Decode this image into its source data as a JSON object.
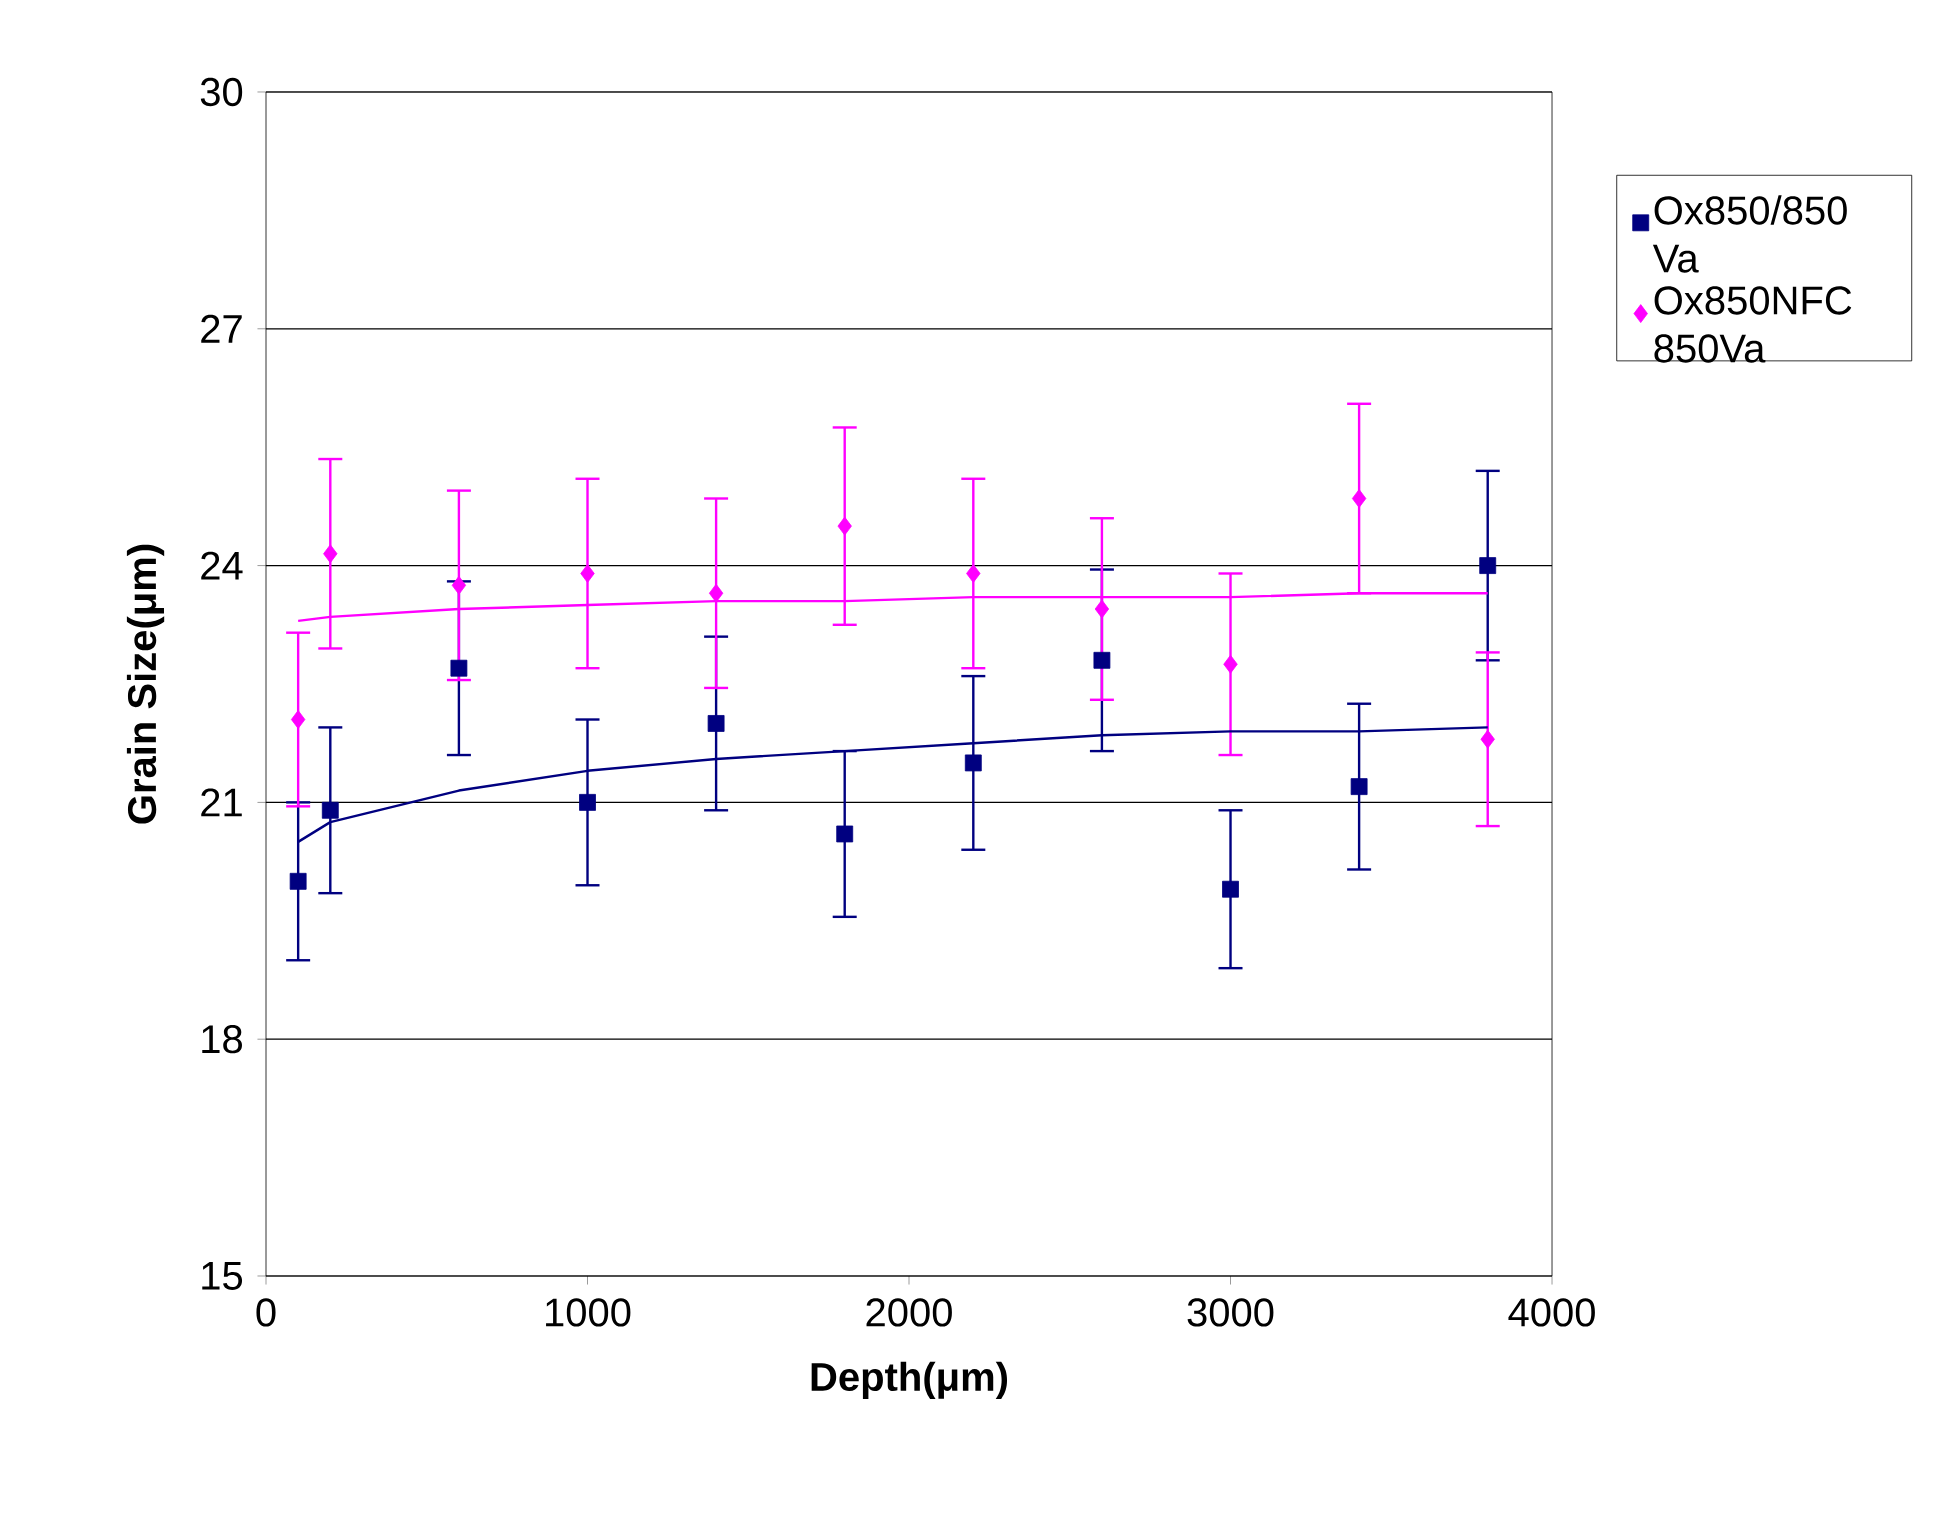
{
  "chart_data": {
    "type": "scatter",
    "xlabel": "Depth(μm)",
    "ylabel": "Grain Size(μm)",
    "x": [
      100,
      200,
      600,
      1000,
      1400,
      1800,
      2200,
      2600,
      3000,
      3400,
      3800
    ],
    "xlim": [
      0,
      4000
    ],
    "xticks": [
      0,
      1000,
      2000,
      3000,
      4000
    ],
    "ylim": [
      15,
      30
    ],
    "yticks": [
      15,
      18,
      21,
      24,
      27,
      30
    ],
    "grid": "y",
    "legend": "right",
    "series": [
      {
        "name": "Ox850/850 Va",
        "color": "#000080",
        "marker": "square",
        "values": [
          20.0,
          20.9,
          22.7,
          21.0,
          22.0,
          20.6,
          21.5,
          22.8,
          19.9,
          21.2,
          24.0
        ],
        "errors": [
          1.0,
          1.05,
          1.1,
          1.05,
          1.1,
          1.05,
          1.1,
          1.15,
          1.0,
          1.05,
          1.2
        ]
      },
      {
        "name": "Ox850NFC 850Va",
        "color": "#ff00ff",
        "marker": "diamond",
        "values": [
          22.05,
          24.15,
          23.75,
          23.9,
          23.65,
          24.5,
          23.9,
          23.45,
          22.75,
          24.85,
          21.8
        ],
        "errors": [
          1.1,
          1.2,
          1.2,
          1.2,
          1.2,
          1.25,
          1.2,
          1.15,
          1.15,
          1.2,
          1.1
        ]
      },
      {
        "type": "line",
        "color": "#000080",
        "marker": "none",
        "x": [
          100,
          200,
          600,
          1000,
          1400,
          1800,
          2200,
          2600,
          3000,
          3400,
          3800
        ],
        "values": [
          20.5,
          20.75,
          21.15,
          21.4,
          21.55,
          21.65,
          21.75,
          21.85,
          21.9,
          21.9,
          21.95
        ]
      },
      {
        "type": "line",
        "color": "#ff00ff",
        "marker": "none",
        "x": [
          100,
          200,
          600,
          1000,
          1400,
          1800,
          2200,
          2600,
          3000,
          3400,
          3800
        ],
        "values": [
          23.3,
          23.35,
          23.45,
          23.5,
          23.55,
          23.55,
          23.6,
          23.6,
          23.6,
          23.65,
          23.65
        ]
      }
    ]
  }
}
